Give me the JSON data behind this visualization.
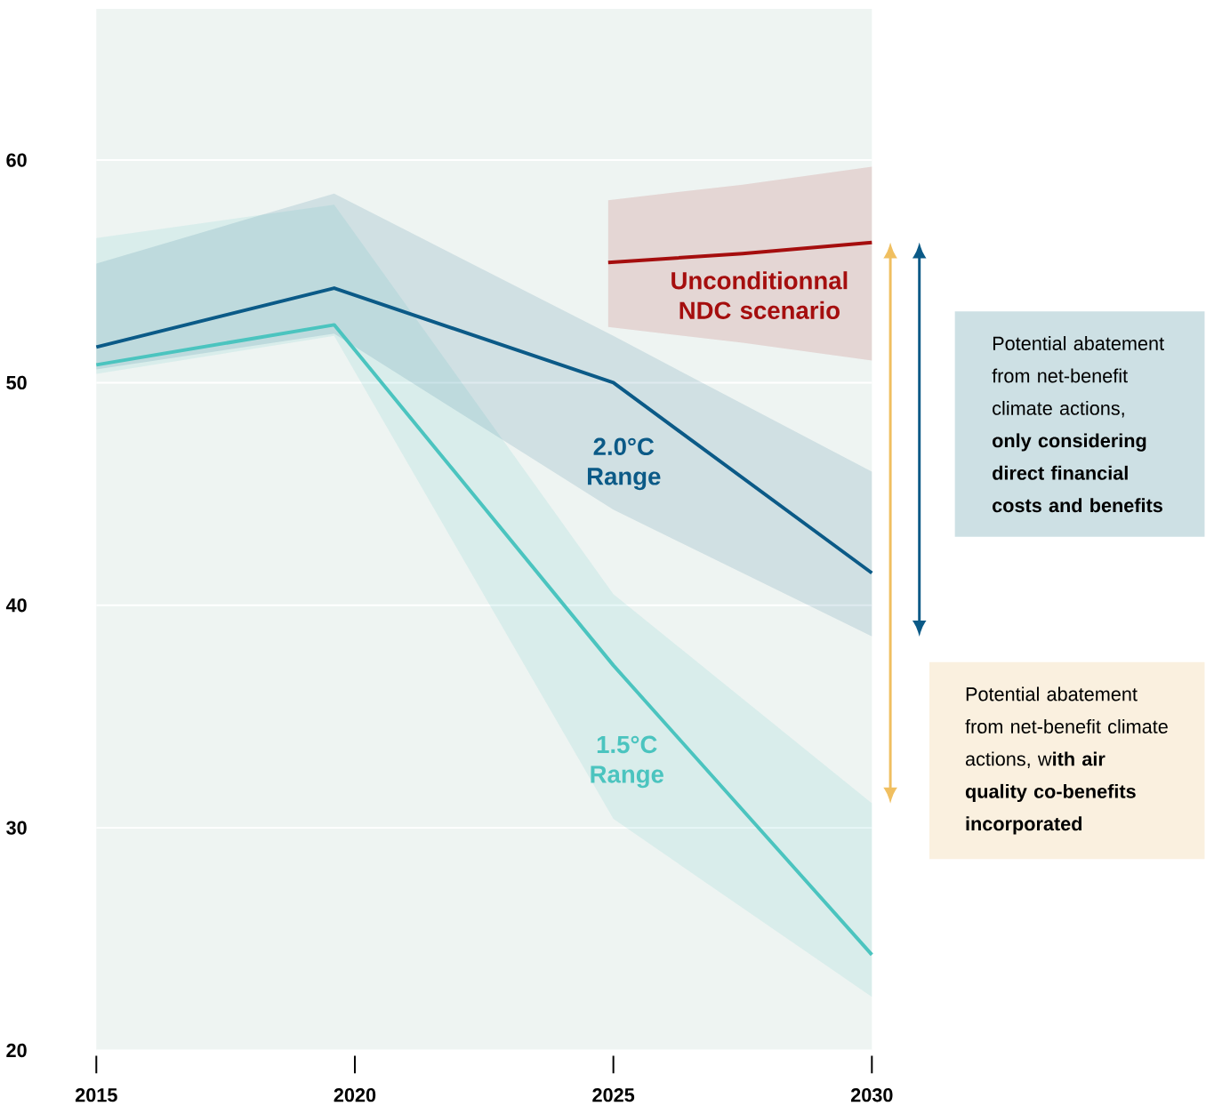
{
  "chart_data": {
    "type": "line",
    "xlim": [
      2015,
      2030
    ],
    "ylim": [
      20,
      66.8
    ],
    "xticks": [
      2015,
      2020,
      2025,
      2030
    ],
    "yticks": [
      20,
      30,
      40,
      50,
      60
    ],
    "grid": "y",
    "line_style": "solid",
    "series": [
      {
        "name": "1.5°C Range",
        "color": "#4bc4bf",
        "x": [
          2015,
          2019.6,
          2025,
          2030
        ],
        "values": [
          50.8,
          52.6,
          37.3,
          24.3
        ],
        "lower": [
          50.4,
          52.1,
          30.4,
          22.4
        ],
        "upper": [
          56.5,
          58.0,
          40.5,
          31.1
        ]
      },
      {
        "name": "2.0°C Range",
        "color": "#0b5a87",
        "x": [
          2015,
          2019.6,
          2025,
          2030
        ],
        "values": [
          51.6,
          54.25,
          50.0,
          41.45
        ],
        "lower": [
          50.6,
          52.2,
          44.3,
          38.6
        ],
        "upper": [
          55.35,
          58.5,
          52.1,
          46.0
        ]
      },
      {
        "name": "Unconditionnal NDC scenario",
        "color": "#a50e0e",
        "x": [
          2024.9,
          2027.5,
          2030
        ],
        "values": [
          55.4,
          55.8,
          56.3
        ],
        "lower": [
          52.5,
          51.8,
          51.0
        ],
        "upper": [
          58.2,
          58.9,
          59.7
        ]
      }
    ],
    "annotations": [
      "Potential abatement from net-benefit climate actions, **only considering direct financial costs and benefits**",
      "Potential abatement from net-benefit climate actions, w**ith air quality co-benefits incorporated**"
    ]
  }
}
